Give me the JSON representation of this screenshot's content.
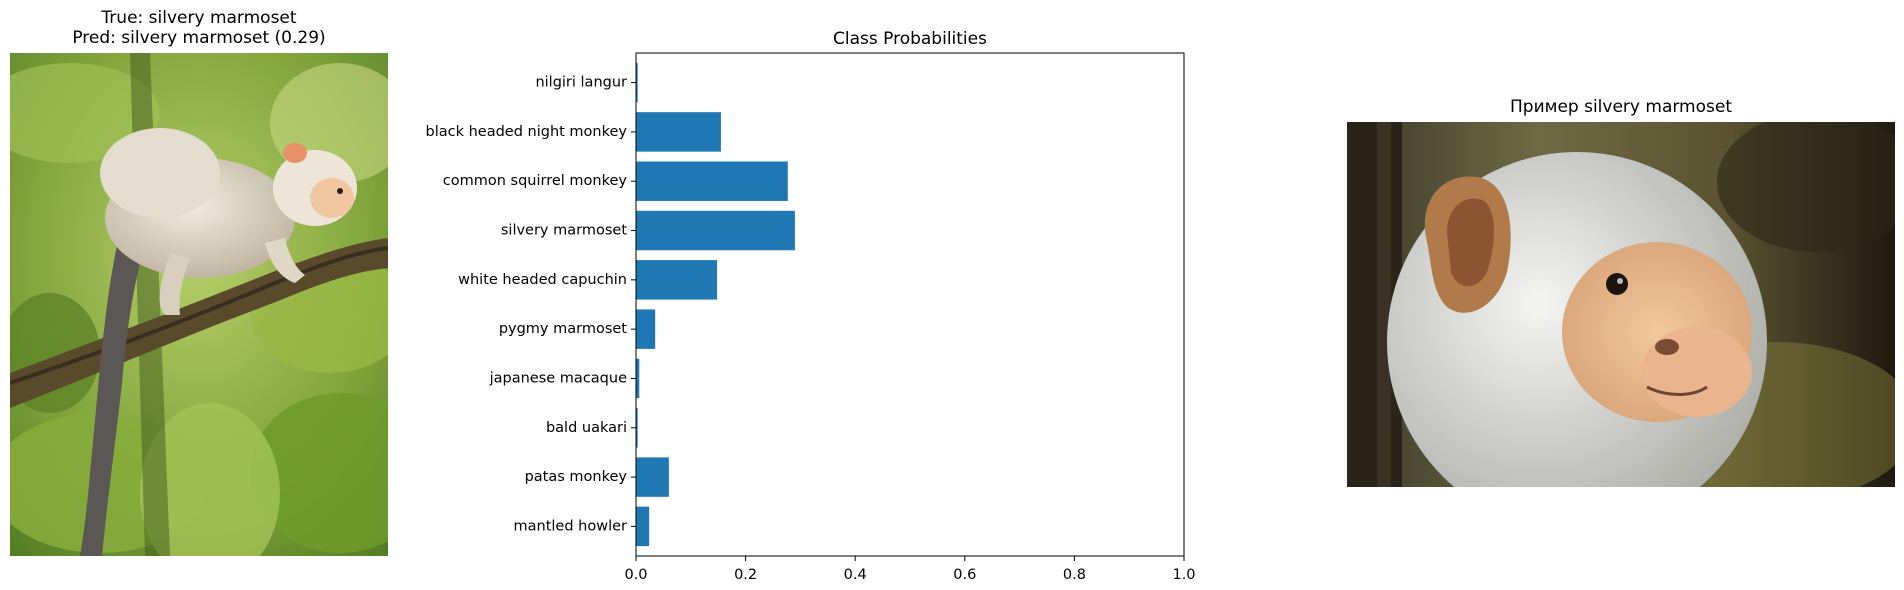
{
  "left_panel": {
    "title_line1": "True: silvery marmoset",
    "title_line2": "Pred: silvery marmoset (0.29)"
  },
  "right_panel": {
    "title": "Пример silvery marmoset"
  },
  "chart_data": {
    "type": "bar",
    "orientation": "horizontal",
    "title": "Class Probabilities",
    "xlabel": "",
    "ylabel": "",
    "xlim": [
      0,
      1.0
    ],
    "xticks": [
      "0.0",
      "0.2",
      "0.4",
      "0.6",
      "0.8",
      "1.0"
    ],
    "grid": false,
    "categories": [
      "nilgiri langur",
      "black headed night monkey",
      "common squirrel monkey",
      "silvery marmoset",
      "white headed capuchin",
      "pygmy marmoset",
      "japanese macaque",
      "bald uakari",
      "patas monkey",
      "mantled howler"
    ],
    "values": [
      0.003,
      0.155,
      0.277,
      0.29,
      0.148,
      0.035,
      0.006,
      0.003,
      0.06,
      0.024
    ],
    "bar_color": "#1f77b4"
  }
}
